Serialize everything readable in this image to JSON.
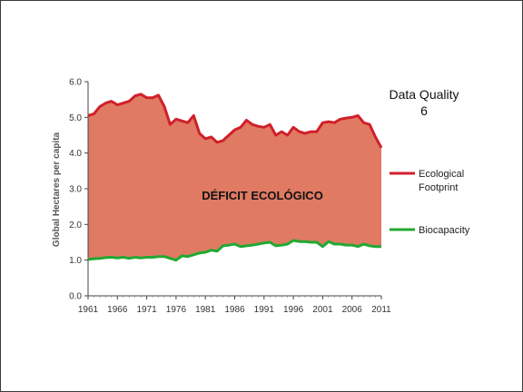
{
  "chart_data": {
    "type": "area",
    "title": "",
    "xlabel": "",
    "ylabel": "Global Hectares per capita",
    "ylim": [
      0,
      6
    ],
    "xlim": [
      1961,
      2011
    ],
    "yticks": [
      "0.0",
      "1.0",
      "2.0",
      "3.0",
      "4.0",
      "5.0",
      "6.0"
    ],
    "xticks": [
      "1961",
      "1966",
      "1971",
      "1976",
      "1981",
      "1986",
      "1991",
      "1996",
      "2001",
      "2006",
      "2011"
    ],
    "data_quality_label": "Data Quality",
    "data_quality_value": "6",
    "annotation": "DÉFICIT ECOLÓGICO",
    "fill_color": "#e07a63",
    "legend_placement": "right",
    "x": [
      1961,
      1962,
      1963,
      1964,
      1965,
      1966,
      1967,
      1968,
      1969,
      1970,
      1971,
      1972,
      1973,
      1974,
      1975,
      1976,
      1977,
      1978,
      1979,
      1980,
      1981,
      1982,
      1983,
      1984,
      1985,
      1986,
      1987,
      1988,
      1989,
      1990,
      1991,
      1992,
      1993,
      1994,
      1995,
      1996,
      1997,
      1998,
      1999,
      2000,
      2001,
      2002,
      2003,
      2004,
      2005,
      2006,
      2007,
      2008,
      2009,
      2010,
      2011
    ],
    "series": [
      {
        "name": "Ecological Footprint",
        "color": "#d0202a",
        "values": [
          5.05,
          5.1,
          5.3,
          5.4,
          5.45,
          5.35,
          5.4,
          5.45,
          5.6,
          5.65,
          5.55,
          5.55,
          5.62,
          5.3,
          4.8,
          4.95,
          4.9,
          4.85,
          5.05,
          4.55,
          4.4,
          4.45,
          4.3,
          4.35,
          4.5,
          4.65,
          4.72,
          4.92,
          4.8,
          4.75,
          4.72,
          4.8,
          4.5,
          4.6,
          4.5,
          4.72,
          4.6,
          4.55,
          4.6,
          4.6,
          4.85,
          4.88,
          4.85,
          4.95,
          4.98,
          5.0,
          5.05,
          4.85,
          4.8,
          4.45,
          4.15
        ]
      },
      {
        "name": "Biocapacity",
        "color": "#22a832",
        "values": [
          1.02,
          1.04,
          1.05,
          1.07,
          1.08,
          1.06,
          1.08,
          1.05,
          1.08,
          1.06,
          1.08,
          1.08,
          1.1,
          1.1,
          1.05,
          1.0,
          1.12,
          1.1,
          1.15,
          1.2,
          1.22,
          1.28,
          1.25,
          1.4,
          1.42,
          1.45,
          1.38,
          1.4,
          1.42,
          1.45,
          1.48,
          1.5,
          1.4,
          1.42,
          1.45,
          1.55,
          1.52,
          1.52,
          1.5,
          1.5,
          1.38,
          1.52,
          1.45,
          1.45,
          1.42,
          1.42,
          1.38,
          1.45,
          1.4,
          1.38,
          1.38
        ]
      }
    ]
  }
}
